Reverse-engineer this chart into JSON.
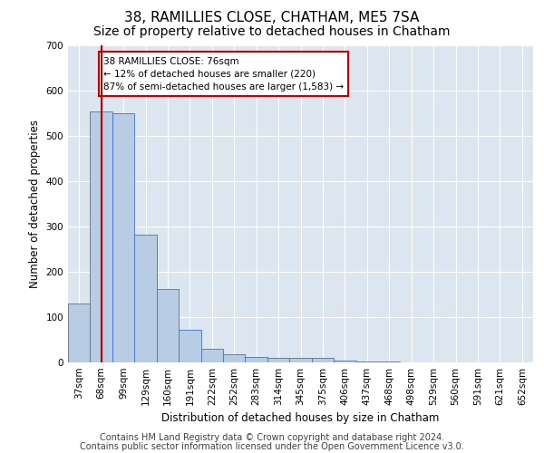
{
  "title": "38, RAMILLIES CLOSE, CHATHAM, ME5 7SA",
  "subtitle": "Size of property relative to detached houses in Chatham",
  "xlabel": "Distribution of detached houses by size in Chatham",
  "ylabel": "Number of detached properties",
  "categories": [
    "37sqm",
    "68sqm",
    "99sqm",
    "129sqm",
    "160sqm",
    "191sqm",
    "222sqm",
    "252sqm",
    "283sqm",
    "314sqm",
    "345sqm",
    "375sqm",
    "406sqm",
    "437sqm",
    "468sqm",
    "498sqm",
    "529sqm",
    "560sqm",
    "591sqm",
    "621sqm",
    "652sqm"
  ],
  "values": [
    130,
    555,
    550,
    283,
    163,
    72,
    30,
    18,
    12,
    10,
    11,
    10,
    5,
    3,
    2,
    1,
    1,
    0,
    0,
    0,
    0
  ],
  "bar_color": "#b8cce4",
  "bar_edge_color": "#4472c4",
  "background_color": "#dce6f1",
  "vline_x": 1.0,
  "vline_color": "#c00000",
  "annotation_text": "38 RAMILLIES CLOSE: 76sqm\n← 12% of detached houses are smaller (220)\n87% of semi-detached houses are larger (1,583) →",
  "annotation_box_color": "#c00000",
  "ylim": [
    0,
    700
  ],
  "yticks": [
    0,
    100,
    200,
    300,
    400,
    500,
    600,
    700
  ],
  "footer_line1": "Contains HM Land Registry data © Crown copyright and database right 2024.",
  "footer_line2": "Contains public sector information licensed under the Open Government Licence v3.0.",
  "title_fontsize": 11,
  "subtitle_fontsize": 10,
  "axis_label_fontsize": 8.5,
  "tick_fontsize": 7.5,
  "footer_fontsize": 7
}
